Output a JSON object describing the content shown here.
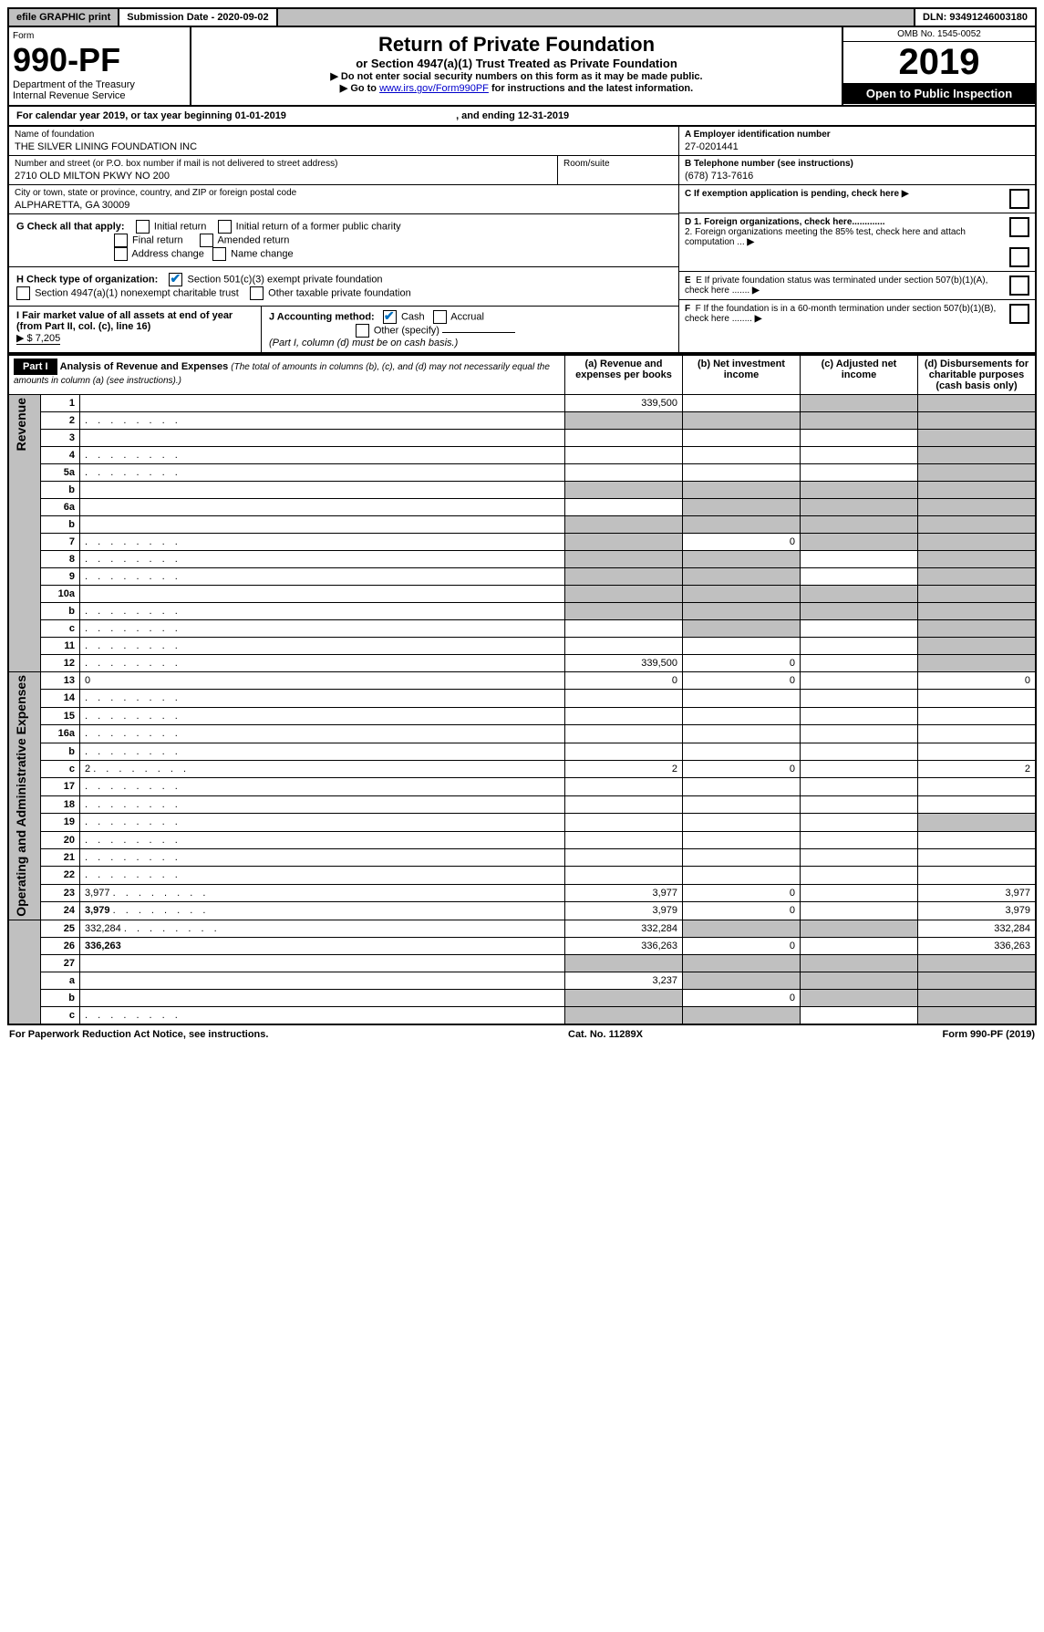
{
  "topbar": {
    "efile": "efile GRAPHIC print",
    "submission_label": "Submission Date - 2020-09-02",
    "dln": "DLN: 93491246003180"
  },
  "header": {
    "form_label": "Form",
    "form_number": "990-PF",
    "dept": "Department of the Treasury",
    "irs": "Internal Revenue Service",
    "title": "Return of Private Foundation",
    "subtitle": "or Section 4947(a)(1) Trust Treated as Private Foundation",
    "note1": "▶ Do not enter social security numbers on this form as it may be made public.",
    "note2_pre": "▶ Go to ",
    "note2_link": "www.irs.gov/Form990PF",
    "note2_post": " for instructions and the latest information.",
    "omb": "OMB No. 1545-0052",
    "year": "2019",
    "inspection": "Open to Public Inspection"
  },
  "calendar": {
    "pre": "For calendar year 2019, or tax year beginning ",
    "begin": "01-01-2019",
    "mid": " , and ending ",
    "end": "12-31-2019"
  },
  "foundation": {
    "name_label": "Name of foundation",
    "name": "THE SILVER LINING FOUNDATION INC",
    "street_label": "Number and street (or P.O. box number if mail is not delivered to street address)",
    "street": "2710 OLD MILTON PKWY NO 200",
    "room_label": "Room/suite",
    "city_label": "City or town, state or province, country, and ZIP or foreign postal code",
    "city": "ALPHARETTA, GA  30009",
    "ein_label": "A Employer identification number",
    "ein": "27-0201441",
    "phone_label": "B Telephone number (see instructions)",
    "phone": "(678) 713-7616",
    "c_label": "C If exemption application is pending, check here",
    "d1": "D 1. Foreign organizations, check here.............",
    "d2": "2. Foreign organizations meeting the 85% test, check here and attach computation ...",
    "e_label": "E  If private foundation status was terminated under section 507(b)(1)(A), check here .......",
    "f_label": "F  If the foundation is in a 60-month termination under section 507(b)(1)(B), check here ........"
  },
  "checks": {
    "g_label": "G Check all that apply:",
    "initial": "Initial return",
    "initial_former": "Initial return of a former public charity",
    "final": "Final return",
    "amended": "Amended return",
    "addr": "Address change",
    "name_change": "Name change",
    "h_label": "H Check type of organization:",
    "h1": "Section 501(c)(3) exempt private foundation",
    "h2": "Section 4947(a)(1) nonexempt charitable trust",
    "h3": "Other taxable private foundation",
    "i_label": "I Fair market value of all assets at end of year (from Part II, col. (c), line 16)",
    "i_val": "▶ $  7,205",
    "j_label": "J Accounting method:",
    "j_cash": "Cash",
    "j_accrual": "Accrual",
    "j_other": "Other (specify)",
    "j_note": "(Part I, column (d) must be on cash basis.)"
  },
  "part1": {
    "label": "Part I",
    "title": "Analysis of Revenue and Expenses",
    "title_note": "(The total of amounts in columns (b), (c), and (d) may not necessarily equal the amounts in column (a) (see instructions).)",
    "col_a": "(a)   Revenue and expenses per books",
    "col_b": "(b)  Net investment income",
    "col_c": "(c)  Adjusted net income",
    "col_d": "(d)  Disbursements for charitable purposes (cash basis only)",
    "rev_label": "Revenue",
    "exp_label": "Operating and Administrative Expenses"
  },
  "rows": [
    {
      "n": "1",
      "d": "",
      "a": "339,500",
      "b": "",
      "c": "",
      "cs": true,
      "ds": true
    },
    {
      "n": "2",
      "d": "",
      "dots": true,
      "a": "",
      "b": "",
      "c": "",
      "as": true,
      "bs": true,
      "cs": true,
      "ds": true
    },
    {
      "n": "3",
      "d": "",
      "a": "",
      "b": "",
      "c": "",
      "ds": true
    },
    {
      "n": "4",
      "d": "",
      "dots": true,
      "a": "",
      "b": "",
      "c": "",
      "ds": true
    },
    {
      "n": "5a",
      "d": "",
      "dots": true,
      "a": "",
      "b": "",
      "c": "",
      "ds": true
    },
    {
      "n": "b",
      "d": "",
      "a": "",
      "b": "",
      "c": "",
      "as": true,
      "bs": true,
      "cs": true,
      "ds": true
    },
    {
      "n": "6a",
      "d": "",
      "a": "",
      "b": "",
      "c": "",
      "bs": true,
      "cs": true,
      "ds": true
    },
    {
      "n": "b",
      "d": "",
      "a": "",
      "b": "",
      "c": "",
      "as": true,
      "bs": true,
      "cs": true,
      "ds": true
    },
    {
      "n": "7",
      "d": "",
      "dots": true,
      "a": "",
      "b": "0",
      "c": "",
      "as": true,
      "cs": true,
      "ds": true
    },
    {
      "n": "8",
      "d": "",
      "dots": true,
      "a": "",
      "b": "",
      "c": "",
      "as": true,
      "bs": true,
      "ds": true
    },
    {
      "n": "9",
      "d": "",
      "dots": true,
      "a": "",
      "b": "",
      "c": "",
      "as": true,
      "bs": true,
      "ds": true
    },
    {
      "n": "10a",
      "d": "",
      "a": "",
      "b": "",
      "c": "",
      "as": true,
      "bs": true,
      "cs": true,
      "ds": true
    },
    {
      "n": "b",
      "d": "",
      "dots": true,
      "a": "",
      "b": "",
      "c": "",
      "as": true,
      "bs": true,
      "cs": true,
      "ds": true
    },
    {
      "n": "c",
      "d": "",
      "dots": true,
      "a": "",
      "b": "",
      "c": "",
      "bs": true,
      "ds": true
    },
    {
      "n": "11",
      "d": "",
      "dots": true,
      "a": "",
      "b": "",
      "c": "",
      "ds": true
    },
    {
      "n": "12",
      "d": "",
      "dots": true,
      "bold": true,
      "a": "339,500",
      "b": "0",
      "c": "",
      "ds": true
    },
    {
      "n": "13",
      "d": "0",
      "a": "0",
      "b": "0",
      "c": ""
    },
    {
      "n": "14",
      "d": "",
      "dots": true,
      "a": "",
      "b": "",
      "c": ""
    },
    {
      "n": "15",
      "d": "",
      "dots": true,
      "a": "",
      "b": "",
      "c": ""
    },
    {
      "n": "16a",
      "d": "",
      "dots": true,
      "a": "",
      "b": "",
      "c": ""
    },
    {
      "n": "b",
      "d": "",
      "dots": true,
      "a": "",
      "b": "",
      "c": ""
    },
    {
      "n": "c",
      "d": "2",
      "dots": true,
      "a": "2",
      "b": "0",
      "c": ""
    },
    {
      "n": "17",
      "d": "",
      "dots": true,
      "a": "",
      "b": "",
      "c": ""
    },
    {
      "n": "18",
      "d": "",
      "dots": true,
      "a": "",
      "b": "",
      "c": ""
    },
    {
      "n": "19",
      "d": "",
      "dots": true,
      "a": "",
      "b": "",
      "c": "",
      "ds": true
    },
    {
      "n": "20",
      "d": "",
      "dots": true,
      "a": "",
      "b": "",
      "c": ""
    },
    {
      "n": "21",
      "d": "",
      "dots": true,
      "a": "",
      "b": "",
      "c": ""
    },
    {
      "n": "22",
      "d": "",
      "dots": true,
      "a": "",
      "b": "",
      "c": ""
    },
    {
      "n": "23",
      "d": "3,977",
      "dots": true,
      "a": "3,977",
      "b": "0",
      "c": ""
    },
    {
      "n": "24",
      "d": "3,979",
      "dots": true,
      "bold": true,
      "a": "3,979",
      "b": "0",
      "c": ""
    },
    {
      "n": "25",
      "d": "332,284",
      "dots": true,
      "a": "332,284",
      "b": "",
      "c": "",
      "bs": true,
      "cs": true
    },
    {
      "n": "26",
      "d": "336,263",
      "bold": true,
      "a": "336,263",
      "b": "0",
      "c": ""
    },
    {
      "n": "27",
      "d": "",
      "a": "",
      "b": "",
      "c": "",
      "as": true,
      "bs": true,
      "cs": true,
      "ds": true
    },
    {
      "n": "a",
      "d": "",
      "bold": true,
      "a": "3,237",
      "b": "",
      "c": "",
      "bs": true,
      "cs": true,
      "ds": true
    },
    {
      "n": "b",
      "d": "",
      "bold": true,
      "a": "",
      "b": "0",
      "c": "",
      "as": true,
      "cs": true,
      "ds": true
    },
    {
      "n": "c",
      "d": "",
      "dots": true,
      "bold": true,
      "a": "",
      "b": "",
      "c": "",
      "as": true,
      "bs": true,
      "ds": true
    }
  ],
  "footer": {
    "left": "For Paperwork Reduction Act Notice, see instructions.",
    "center": "Cat. No. 11289X",
    "right": "Form 990-PF (2019)"
  }
}
